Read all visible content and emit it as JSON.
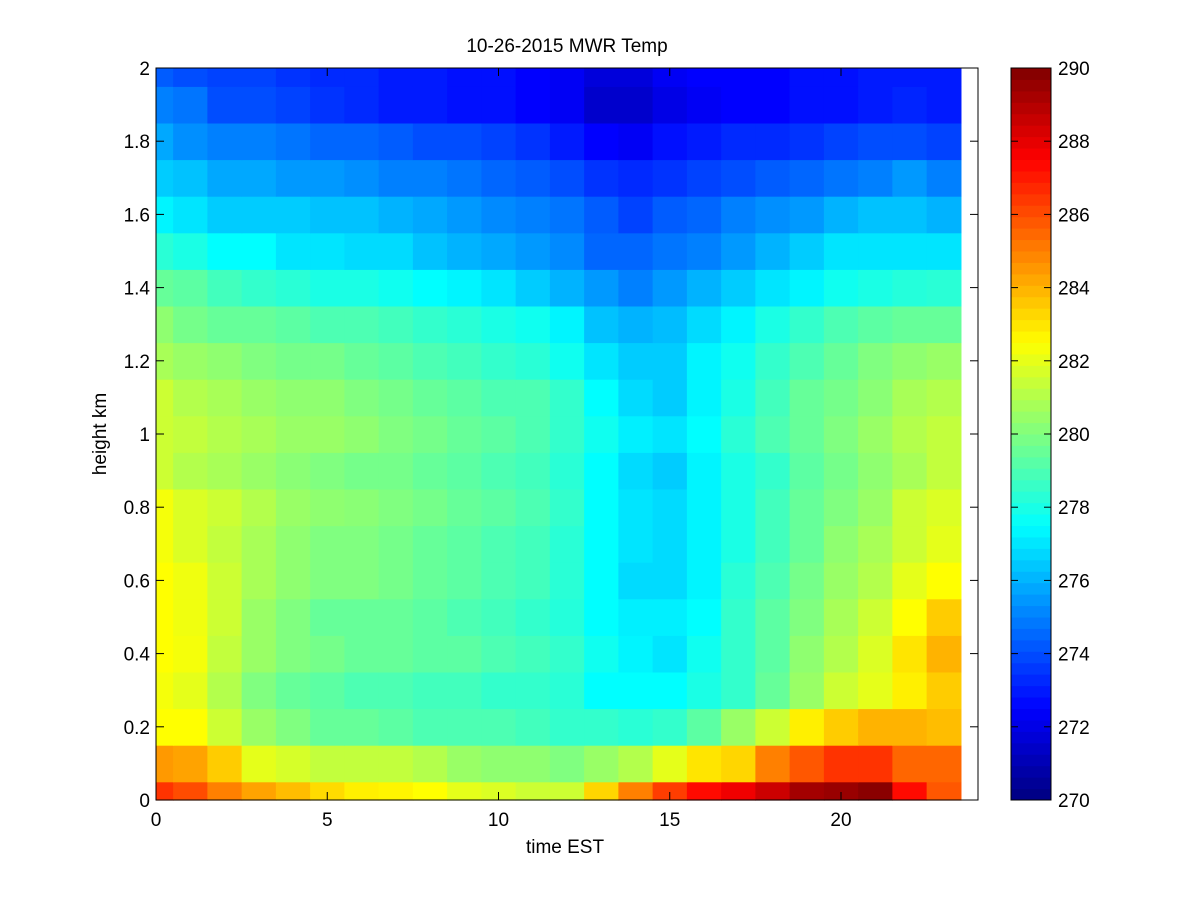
{
  "chart_data": {
    "type": "heatmap",
    "title": "10-26-2015 MWR Temp",
    "xlabel": "time EST",
    "ylabel": "height km",
    "xlim": [
      0,
      24
    ],
    "ylim": [
      0,
      2
    ],
    "x_ticks": [
      0,
      5,
      10,
      15,
      20
    ],
    "x_tick_labels": [
      "0",
      "5",
      "10",
      "15",
      "20"
    ],
    "y_ticks": [
      0,
      0.2,
      0.4,
      0.6,
      0.8,
      1,
      1.2,
      1.4,
      1.6,
      1.8,
      2
    ],
    "y_tick_labels": [
      "0",
      "0.2",
      "0.4",
      "0.6",
      "0.8",
      "1",
      "1.2",
      "1.4",
      "1.6",
      "1.8",
      "2"
    ],
    "colormap": "jet",
    "colorbar": {
      "min": 270,
      "max": 290,
      "ticks": [
        270,
        272,
        274,
        276,
        278,
        280,
        282,
        284,
        286,
        288,
        290
      ],
      "tick_labels": [
        "270",
        "272",
        "274",
        "276",
        "278",
        "280",
        "282",
        "284",
        "286",
        "288",
        "290"
      ]
    },
    "x": [
      0,
      1,
      2,
      3,
      4,
      5,
      6,
      7,
      8,
      9,
      10,
      11,
      12,
      13,
      14,
      15,
      16,
      17,
      18,
      19,
      20,
      21,
      22,
      23
    ],
    "y": [
      0,
      0.1,
      0.2,
      0.3,
      0.4,
      0.5,
      0.6,
      0.7,
      0.8,
      0.9,
      1.0,
      1.1,
      1.2,
      1.3,
      1.4,
      1.5,
      1.6,
      1.7,
      1.8,
      1.9,
      2.0
    ],
    "z": [
      [
        286.5,
        286.0,
        285.0,
        284.3,
        283.8,
        283.2,
        282.8,
        282.7,
        282.5,
        282.0,
        281.8,
        281.5,
        281.5,
        283.3,
        285.0,
        286.3,
        287.3,
        287.8,
        288.5,
        289.3,
        289.5,
        289.8,
        287.3,
        285.8
      ],
      [
        284.5,
        284.3,
        283.5,
        282.0,
        281.7,
        281.3,
        281.3,
        281.3,
        281.0,
        280.5,
        280.3,
        280.3,
        280.0,
        280.5,
        281.0,
        282.0,
        283.0,
        283.3,
        285.0,
        285.8,
        286.5,
        286.5,
        285.5,
        285.5
      ],
      [
        282.5,
        282.5,
        281.5,
        280.5,
        280.0,
        279.5,
        279.5,
        279.3,
        279.0,
        279.0,
        279.0,
        278.8,
        278.5,
        278.5,
        278.3,
        278.5,
        279.3,
        280.5,
        281.5,
        282.8,
        283.5,
        284.0,
        284.0,
        283.8
      ],
      [
        282.3,
        282.0,
        281.0,
        280.0,
        279.5,
        279.3,
        279.0,
        279.0,
        278.8,
        278.8,
        278.5,
        278.5,
        278.3,
        277.5,
        277.5,
        277.5,
        278.0,
        278.5,
        279.5,
        280.5,
        281.5,
        282.0,
        282.8,
        283.5
      ],
      [
        282.5,
        282.3,
        281.3,
        280.5,
        280.0,
        279.8,
        279.5,
        279.5,
        279.3,
        279.3,
        279.0,
        278.8,
        278.5,
        277.8,
        277.3,
        277.0,
        277.8,
        278.5,
        279.3,
        280.3,
        281.0,
        281.8,
        283.0,
        284.0
      ],
      [
        282.5,
        282.2,
        281.5,
        280.5,
        280.0,
        279.5,
        279.5,
        279.5,
        279.3,
        279.0,
        278.8,
        278.5,
        278.2,
        277.5,
        277.2,
        277.2,
        277.5,
        278.5,
        279.3,
        280.0,
        280.8,
        281.5,
        282.5,
        283.5
      ],
      [
        282.5,
        282.2,
        281.5,
        280.8,
        280.3,
        280.0,
        280.0,
        279.8,
        279.5,
        279.3,
        279.0,
        278.8,
        278.3,
        277.5,
        276.8,
        276.8,
        277.3,
        278.3,
        279.0,
        279.8,
        280.5,
        281.0,
        282.0,
        282.5
      ],
      [
        282.3,
        281.8,
        281.3,
        280.8,
        280.3,
        280.0,
        280.0,
        279.8,
        279.5,
        279.3,
        279.0,
        278.8,
        278.3,
        277.5,
        277.0,
        276.8,
        277.3,
        278.0,
        278.8,
        279.5,
        280.3,
        280.8,
        281.5,
        282.0
      ],
      [
        282.3,
        281.8,
        281.5,
        281.0,
        280.5,
        280.3,
        280.2,
        280.0,
        279.8,
        279.5,
        279.3,
        279.0,
        278.5,
        277.5,
        277.0,
        276.8,
        277.3,
        278.0,
        278.8,
        279.5,
        280.0,
        280.5,
        281.5,
        281.8
      ],
      [
        281.5,
        281.0,
        280.8,
        280.5,
        280.2,
        280.0,
        279.8,
        279.8,
        279.5,
        279.3,
        279.0,
        278.8,
        278.3,
        277.5,
        276.8,
        276.5,
        277.3,
        278.0,
        278.5,
        279.3,
        279.8,
        280.3,
        280.8,
        281.3
      ],
      [
        281.5,
        281.3,
        281.0,
        280.8,
        280.5,
        280.5,
        280.3,
        280.0,
        279.8,
        279.5,
        279.3,
        279.0,
        278.5,
        277.8,
        277.2,
        277.0,
        277.5,
        278.3,
        279.0,
        279.5,
        280.0,
        280.5,
        281.0,
        281.3
      ],
      [
        281.5,
        281.0,
        280.8,
        280.5,
        280.3,
        280.3,
        280.0,
        279.8,
        279.5,
        279.3,
        279.0,
        279.0,
        278.5,
        277.5,
        276.8,
        276.5,
        277.3,
        278.0,
        278.8,
        279.5,
        279.8,
        280.2,
        280.8,
        281.0
      ],
      [
        280.8,
        280.5,
        280.3,
        280.0,
        279.8,
        279.8,
        279.5,
        279.3,
        279.0,
        278.8,
        278.5,
        278.3,
        277.8,
        277.0,
        276.5,
        276.5,
        277.3,
        277.8,
        278.5,
        279.0,
        279.5,
        280.0,
        280.3,
        280.5
      ],
      [
        280.3,
        279.8,
        279.5,
        279.5,
        279.3,
        279.0,
        279.0,
        278.8,
        278.5,
        278.3,
        278.0,
        277.8,
        277.3,
        276.3,
        276.0,
        276.2,
        276.8,
        277.3,
        278.0,
        278.5,
        279.0,
        279.3,
        279.5,
        279.5
      ],
      [
        279.5,
        279.3,
        278.8,
        278.5,
        278.3,
        278.0,
        278.0,
        277.8,
        277.5,
        277.3,
        277.0,
        276.5,
        276.0,
        275.5,
        275.0,
        275.5,
        276.0,
        276.5,
        277.0,
        277.3,
        277.8,
        278.0,
        278.2,
        278.3
      ],
      [
        278.3,
        278.0,
        277.5,
        277.5,
        277.0,
        277.0,
        276.8,
        276.8,
        276.3,
        276.0,
        275.8,
        275.5,
        275.2,
        274.5,
        274.5,
        274.8,
        275.0,
        275.5,
        276.0,
        276.5,
        277.0,
        277.0,
        277.0,
        277.0
      ],
      [
        277.3,
        277.0,
        276.5,
        276.5,
        276.5,
        276.3,
        276.3,
        276.0,
        275.8,
        275.5,
        275.2,
        275.0,
        274.8,
        274.3,
        273.8,
        274.3,
        274.5,
        275.0,
        275.3,
        275.5,
        276.0,
        276.3,
        276.3,
        276.0
      ],
      [
        276.5,
        276.3,
        275.8,
        275.8,
        275.5,
        275.5,
        275.3,
        275.0,
        275.0,
        274.8,
        274.5,
        274.3,
        274.0,
        273.5,
        273.3,
        273.5,
        273.8,
        274.0,
        274.3,
        274.5,
        274.8,
        275.0,
        275.5,
        275.0
      ],
      [
        275.8,
        275.3,
        275.0,
        275.0,
        274.8,
        274.5,
        274.5,
        274.3,
        274.0,
        274.0,
        273.8,
        273.5,
        273.0,
        272.5,
        272.3,
        272.8,
        273.0,
        273.3,
        273.3,
        273.5,
        273.8,
        274.0,
        274.0,
        273.8
      ],
      [
        275.0,
        274.8,
        274.0,
        274.0,
        273.8,
        273.5,
        273.3,
        273.0,
        273.0,
        272.8,
        272.8,
        272.5,
        272.3,
        271.5,
        271.5,
        272.0,
        272.3,
        272.5,
        272.5,
        272.8,
        272.8,
        273.0,
        273.2,
        273.0
      ],
      [
        274.3,
        274.0,
        273.8,
        273.8,
        273.5,
        273.3,
        273.3,
        273.0,
        273.0,
        272.8,
        272.8,
        272.5,
        272.3,
        271.8,
        271.8,
        272.3,
        272.5,
        272.5,
        272.5,
        272.8,
        272.8,
        273.0,
        273.0,
        273.0
      ]
    ]
  }
}
